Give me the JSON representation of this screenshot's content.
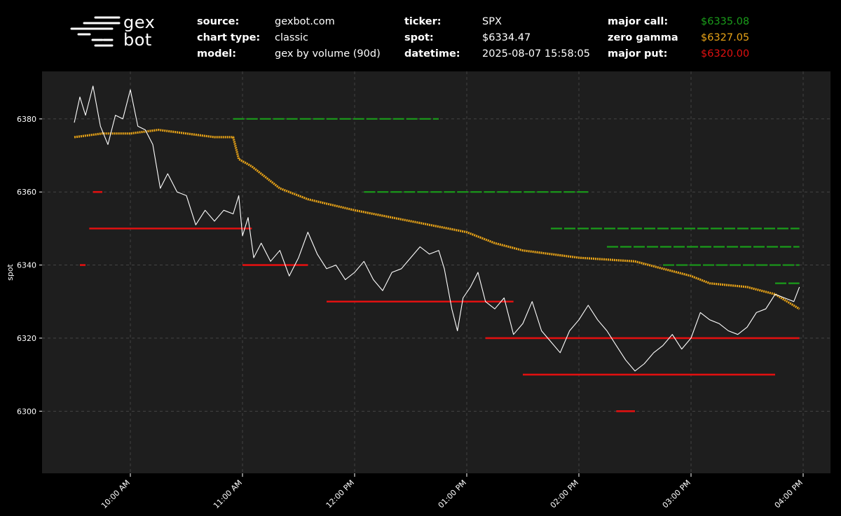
{
  "logo": {
    "line1": "gex",
    "line2": "bot"
  },
  "header": {
    "source_label": "source:",
    "source_value": "gexbot.com",
    "charttype_label": "chart type:",
    "charttype_value": "classic",
    "model_label": "model:",
    "model_value": "gex by volume (90d)",
    "ticker_label": "ticker:",
    "ticker_value": "SPX",
    "spot_label": "spot:",
    "spot_value": "$6334.47",
    "datetime_label": "datetime:",
    "datetime_value": "2025-08-07 15:58:05",
    "majorcall_label": "major call:",
    "majorcall_value": "$6335.08",
    "zerogamma_label": "zero gamma",
    "zerogamma_value": "$6327.05",
    "majorput_label": "major put:",
    "majorput_value": "$6320.00"
  },
  "colors": {
    "background": "#000000",
    "plot_bg": "#1e1e1e",
    "call": "#1a9c1a",
    "zero_gamma": "#e8a317",
    "put": "#e01010",
    "spot": "#ffffff",
    "grid": "#4a4a4a"
  },
  "chart_data": {
    "type": "line",
    "ylabel": "spot",
    "xlabel": "",
    "ylim": [
      6283,
      6393
    ],
    "grid": true,
    "y_ticks": [
      6300,
      6320,
      6340,
      6360,
      6380
    ],
    "x_ticks": [
      "10:00 AM",
      "11:00 AM",
      "12:00 PM",
      "01:00 PM",
      "02:00 PM",
      "03:00 PM",
      "04:00 PM"
    ],
    "x_range": [
      "09:30",
      "16:00"
    ],
    "series": [
      {
        "key": "spot",
        "points": [
          [
            "09:30",
            6379
          ],
          [
            "09:33",
            6386
          ],
          [
            "09:36",
            6381
          ],
          [
            "09:40",
            6389
          ],
          [
            "09:44",
            6378
          ],
          [
            "09:48",
            6373
          ],
          [
            "09:52",
            6381
          ],
          [
            "09:56",
            6380
          ],
          [
            "10:00",
            6388
          ],
          [
            "10:04",
            6378
          ],
          [
            "10:08",
            6377
          ],
          [
            "10:12",
            6373
          ],
          [
            "10:16",
            6361
          ],
          [
            "10:20",
            6365
          ],
          [
            "10:25",
            6360
          ],
          [
            "10:30",
            6359
          ],
          [
            "10:35",
            6351
          ],
          [
            "10:40",
            6355
          ],
          [
            "10:45",
            6352
          ],
          [
            "10:50",
            6355
          ],
          [
            "10:55",
            6354
          ],
          [
            "10:58",
            6359
          ],
          [
            "11:00",
            6348
          ],
          [
            "11:03",
            6353
          ],
          [
            "11:06",
            6342
          ],
          [
            "11:10",
            6346
          ],
          [
            "11:15",
            6341
          ],
          [
            "11:20",
            6344
          ],
          [
            "11:25",
            6337
          ],
          [
            "11:30",
            6342
          ],
          [
            "11:35",
            6349
          ],
          [
            "11:40",
            6343
          ],
          [
            "11:45",
            6339
          ],
          [
            "11:50",
            6340
          ],
          [
            "11:55",
            6336
          ],
          [
            "12:00",
            6338
          ],
          [
            "12:05",
            6341
          ],
          [
            "12:10",
            6336
          ],
          [
            "12:15",
            6333
          ],
          [
            "12:20",
            6338
          ],
          [
            "12:25",
            6339
          ],
          [
            "12:30",
            6342
          ],
          [
            "12:35",
            6345
          ],
          [
            "12:40",
            6343
          ],
          [
            "12:45",
            6344
          ],
          [
            "12:48",
            6339
          ],
          [
            "12:52",
            6328
          ],
          [
            "12:55",
            6322
          ],
          [
            "12:58",
            6331
          ],
          [
            "13:02",
            6334
          ],
          [
            "13:06",
            6338
          ],
          [
            "13:10",
            6330
          ],
          [
            "13:15",
            6328
          ],
          [
            "13:20",
            6331
          ],
          [
            "13:25",
            6321
          ],
          [
            "13:30",
            6324
          ],
          [
            "13:35",
            6330
          ],
          [
            "13:40",
            6322
          ],
          [
            "13:45",
            6319
          ],
          [
            "13:50",
            6316
          ],
          [
            "13:55",
            6322
          ],
          [
            "14:00",
            6325
          ],
          [
            "14:05",
            6329
          ],
          [
            "14:10",
            6325
          ],
          [
            "14:15",
            6322
          ],
          [
            "14:20",
            6318
          ],
          [
            "14:25",
            6314
          ],
          [
            "14:30",
            6311
          ],
          [
            "14:35",
            6313
          ],
          [
            "14:40",
            6316
          ],
          [
            "14:45",
            6318
          ],
          [
            "14:50",
            6321
          ],
          [
            "14:55",
            6317
          ],
          [
            "15:00",
            6320
          ],
          [
            "15:05",
            6327
          ],
          [
            "15:10",
            6325
          ],
          [
            "15:15",
            6324
          ],
          [
            "15:20",
            6322
          ],
          [
            "15:25",
            6321
          ],
          [
            "15:30",
            6323
          ],
          [
            "15:35",
            6327
          ],
          [
            "15:40",
            6328
          ],
          [
            "15:45",
            6332
          ],
          [
            "15:50",
            6331
          ],
          [
            "15:55",
            6330
          ],
          [
            "15:58",
            6334
          ]
        ]
      },
      {
        "key": "zero_gamma",
        "points": [
          [
            "09:30",
            6375
          ],
          [
            "09:45",
            6376
          ],
          [
            "10:00",
            6376
          ],
          [
            "10:15",
            6377
          ],
          [
            "10:30",
            6376
          ],
          [
            "10:45",
            6375
          ],
          [
            "10:55",
            6375
          ],
          [
            "10:58",
            6369
          ],
          [
            "11:05",
            6367
          ],
          [
            "11:20",
            6361
          ],
          [
            "11:35",
            6358
          ],
          [
            "12:00",
            6355
          ],
          [
            "12:30",
            6352
          ],
          [
            "13:00",
            6349
          ],
          [
            "13:15",
            6346
          ],
          [
            "13:30",
            6344
          ],
          [
            "14:00",
            6342
          ],
          [
            "14:30",
            6341
          ],
          [
            "14:45",
            6339
          ],
          [
            "15:00",
            6337
          ],
          [
            "15:10",
            6335
          ],
          [
            "15:30",
            6334
          ],
          [
            "15:45",
            6332
          ],
          [
            "15:58",
            6328
          ]
        ]
      },
      {
        "key": "call",
        "segments": [
          [
            "10:55",
            "12:45",
            6380
          ],
          [
            "12:05",
            "14:05",
            6360
          ],
          [
            "13:45",
            "15:58",
            6350
          ],
          [
            "14:15",
            "15:58",
            6345
          ],
          [
            "14:45",
            "15:58",
            6340
          ],
          [
            "15:45",
            "15:58",
            6335
          ]
        ]
      },
      {
        "key": "put",
        "segments": [
          [
            "09:38",
            "11:05",
            6350
          ],
          [
            "11:00",
            "11:35",
            6340
          ],
          [
            "11:45",
            "13:25",
            6330
          ],
          [
            "13:10",
            "15:58",
            6320
          ],
          [
            "13:30",
            "15:45",
            6310
          ],
          [
            "14:20",
            "14:30",
            6300
          ],
          [
            "09:40",
            "09:45",
            6360
          ],
          [
            "09:33",
            "09:36",
            6340
          ]
        ]
      }
    ]
  }
}
